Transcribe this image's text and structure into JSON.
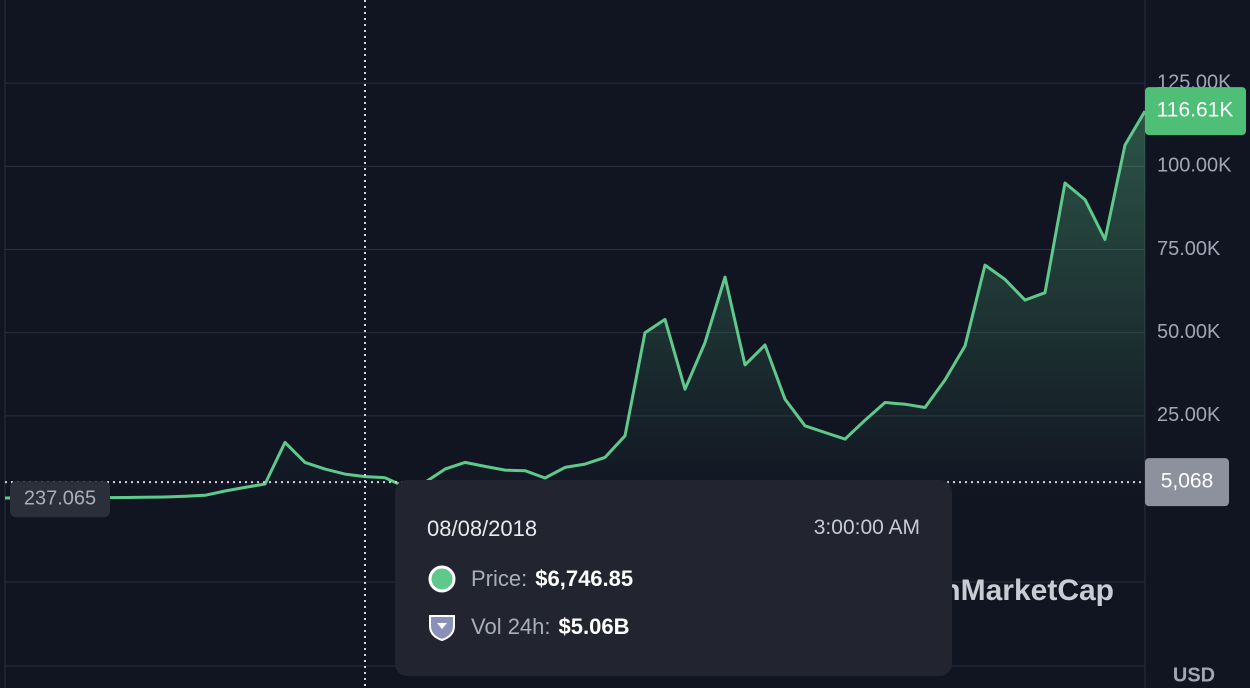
{
  "chart_data": {
    "type": "line",
    "color": "#5ec98a",
    "values": [
      300,
      320,
      350,
      380,
      400,
      420,
      450,
      500,
      600,
      800,
      1100,
      2400,
      3500,
      4500,
      17000,
      11000,
      9000,
      7500,
      6746.85,
      6400,
      3700,
      5000,
      9000,
      11000,
      9800,
      8700,
      8500,
      6300,
      9500,
      10500,
      12500,
      19000,
      50000,
      54000,
      33000,
      47000,
      66700,
      40300,
      46300,
      30000,
      22000,
      20000,
      18000,
      23700,
      29000,
      28500,
      27500,
      35800,
      46000,
      70300,
      66000,
      59800,
      62000,
      95000,
      90000,
      78000,
      106400,
      116610
    ],
    "ylim": [
      0,
      150000
    ],
    "yticks": [
      {
        "value": 25000,
        "label": "25.00K"
      },
      {
        "value": 50000,
        "label": "50.00K"
      },
      {
        "value": 75000,
        "label": "75.00K"
      },
      {
        "value": 100000,
        "label": "100.00K"
      },
      {
        "value": 125000,
        "label": "125.00K"
      }
    ],
    "grid": true,
    "last_price": {
      "value": 116610,
      "label": "116.61K"
    },
    "crosshair": {
      "value": 5068,
      "label": "5,068"
    },
    "min_price": 237.065,
    "hover_index": 18,
    "tooltip": {
      "date": "08/08/2018",
      "time": "3:00:00 AM",
      "price_label": "Price:",
      "price": {
        "value": 6746.85,
        "label": "$6,746.85"
      },
      "volume_label": "Vol 24h:",
      "volume": "$5.06B"
    },
    "watermark": "CoinMarketCap",
    "currency": "USD"
  }
}
